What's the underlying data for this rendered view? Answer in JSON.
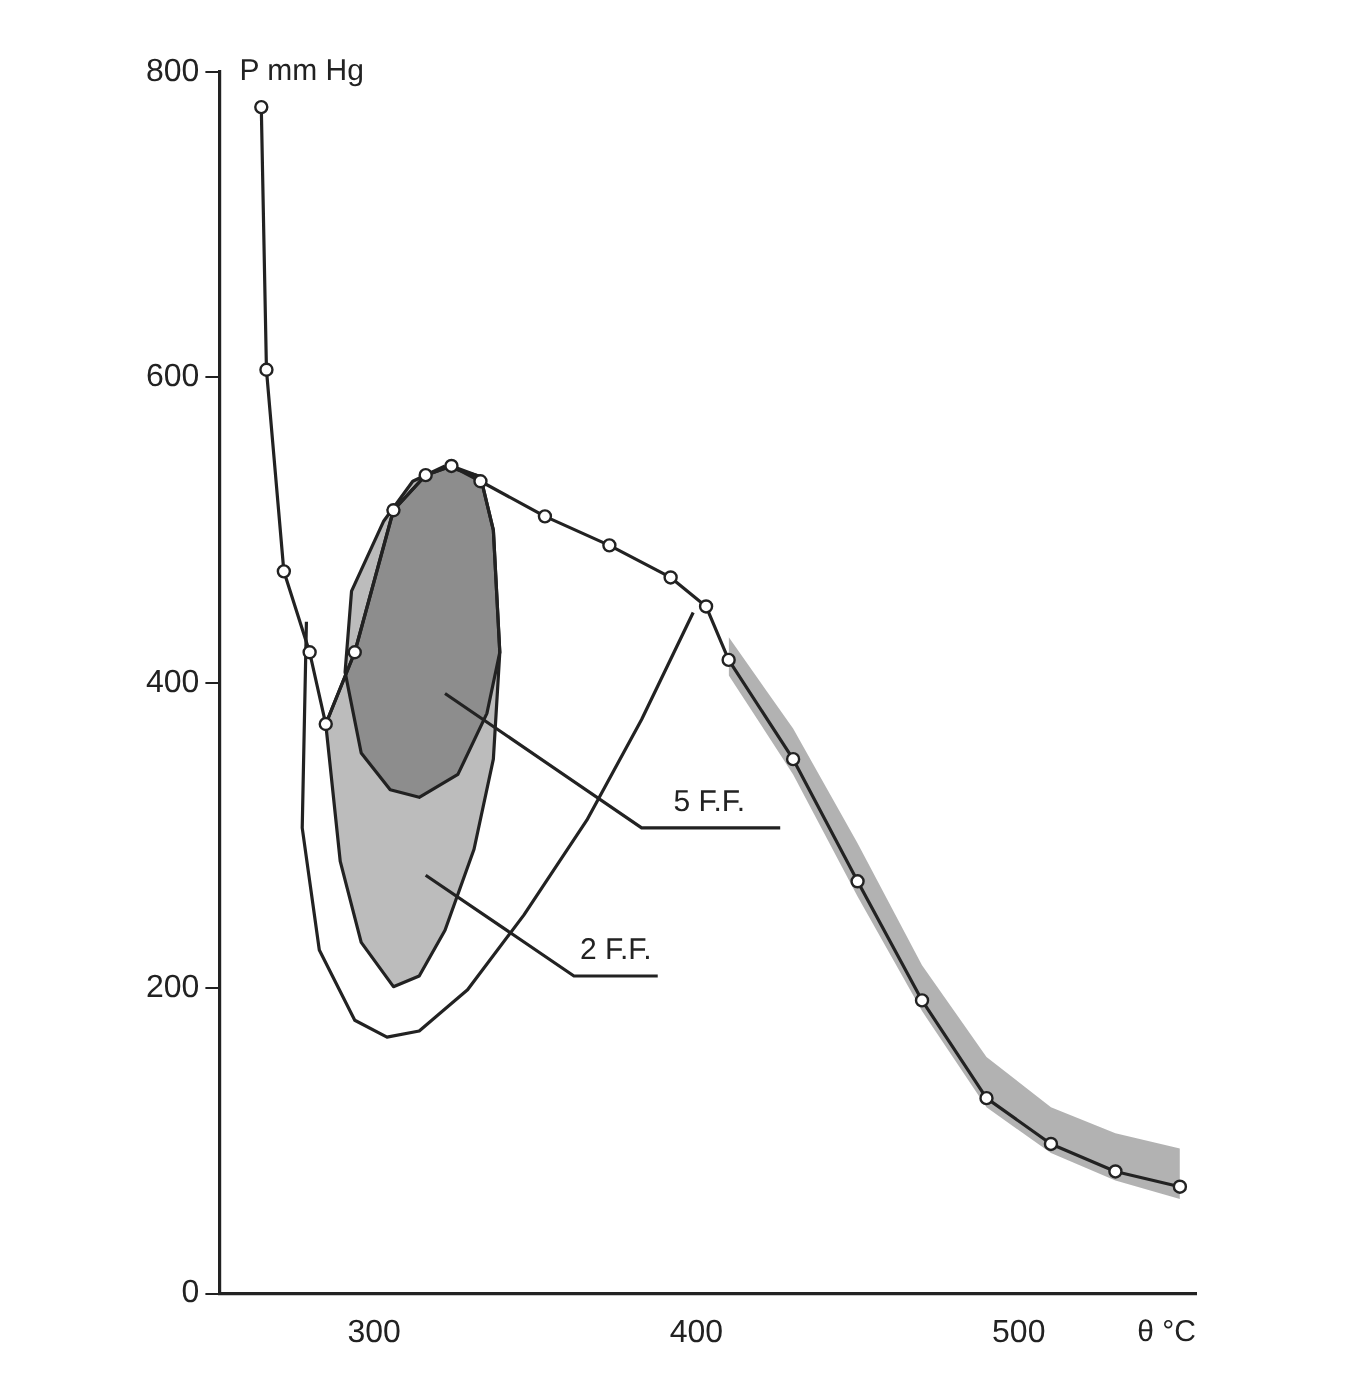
{
  "chart_data": {
    "type": "line",
    "xlabel": "θ °C",
    "ylabel": "P mm Hg",
    "xlim": [
      252,
      555
    ],
    "xticks": [
      300,
      400,
      500
    ],
    "ylim": [
      0,
      800
    ],
    "yticks": [
      0,
      200,
      400,
      600,
      800
    ],
    "grid": false,
    "legend": false,
    "series": [
      {
        "color": "#222222",
        "marker": "circle",
        "x": [
          265,
          266.6,
          272,
          280,
          285,
          294,
          306,
          316,
          324,
          333,
          353,
          373,
          392,
          403,
          410,
          430,
          450,
          470,
          490,
          510,
          530,
          550
        ],
        "values": [
          777,
          605,
          473,
          420,
          373,
          420,
          513,
          536,
          542,
          532,
          509,
          490,
          469,
          450,
          415,
          350,
          270,
          192,
          128,
          98,
          80,
          70
        ],
        "lower": [
          null,
          null,
          null,
          null,
          null,
          null,
          null,
          null,
          null,
          null,
          null,
          null,
          null,
          null,
          405,
          340,
          260,
          185,
          122,
          92,
          74,
          62
        ],
        "upper": [
          null,
          null,
          null,
          null,
          null,
          null,
          null,
          null,
          null,
          null,
          null,
          null,
          null,
          null,
          430,
          370,
          295,
          215,
          155,
          122,
          105,
          95
        ]
      },
      {
        "type": "area",
        "color": "#222222",
        "x": [
          285,
          289.5,
          296,
          306,
          314,
          322,
          331,
          337,
          339,
          337,
          333,
          324,
          316,
          306,
          294,
          285
        ],
        "values": [
          373,
          283,
          230,
          201,
          208,
          238,
          291,
          350,
          420,
          500,
          535,
          542,
          536,
          513,
          420,
          373
        ]
      },
      {
        "type": "area",
        "color": "#222222",
        "x": [
          322,
          333,
          337,
          339,
          335,
          326,
          314,
          305,
          296,
          291,
          293,
          303,
          312,
          322
        ],
        "values": [
          542,
          535,
          500,
          420,
          380,
          340,
          325,
          330,
          354,
          407,
          460,
          506,
          532,
          542
        ]
      },
      {
        "color": "#222222",
        "x": [
          279,
          277.7,
          283,
          294,
          304,
          314,
          329,
          346.5,
          366,
          383,
          399
        ],
        "values": [
          440,
          305,
          225,
          179,
          168,
          172,
          199,
          248,
          310,
          376,
          446
        ]
      },
      {
        "color": "#222222",
        "x": [
          322,
          383,
          426
        ],
        "values": [
          393,
          305,
          305
        ]
      },
      {
        "color": "#222222",
        "x": [
          316,
          362,
          388
        ],
        "values": [
          274,
          208,
          208
        ]
      }
    ],
    "annotations": [
      {
        "text": "5 F.F.",
        "x": 404,
        "y": 305
      },
      {
        "text": "2 F.F.",
        "x": 375,
        "y": 208
      }
    ]
  }
}
